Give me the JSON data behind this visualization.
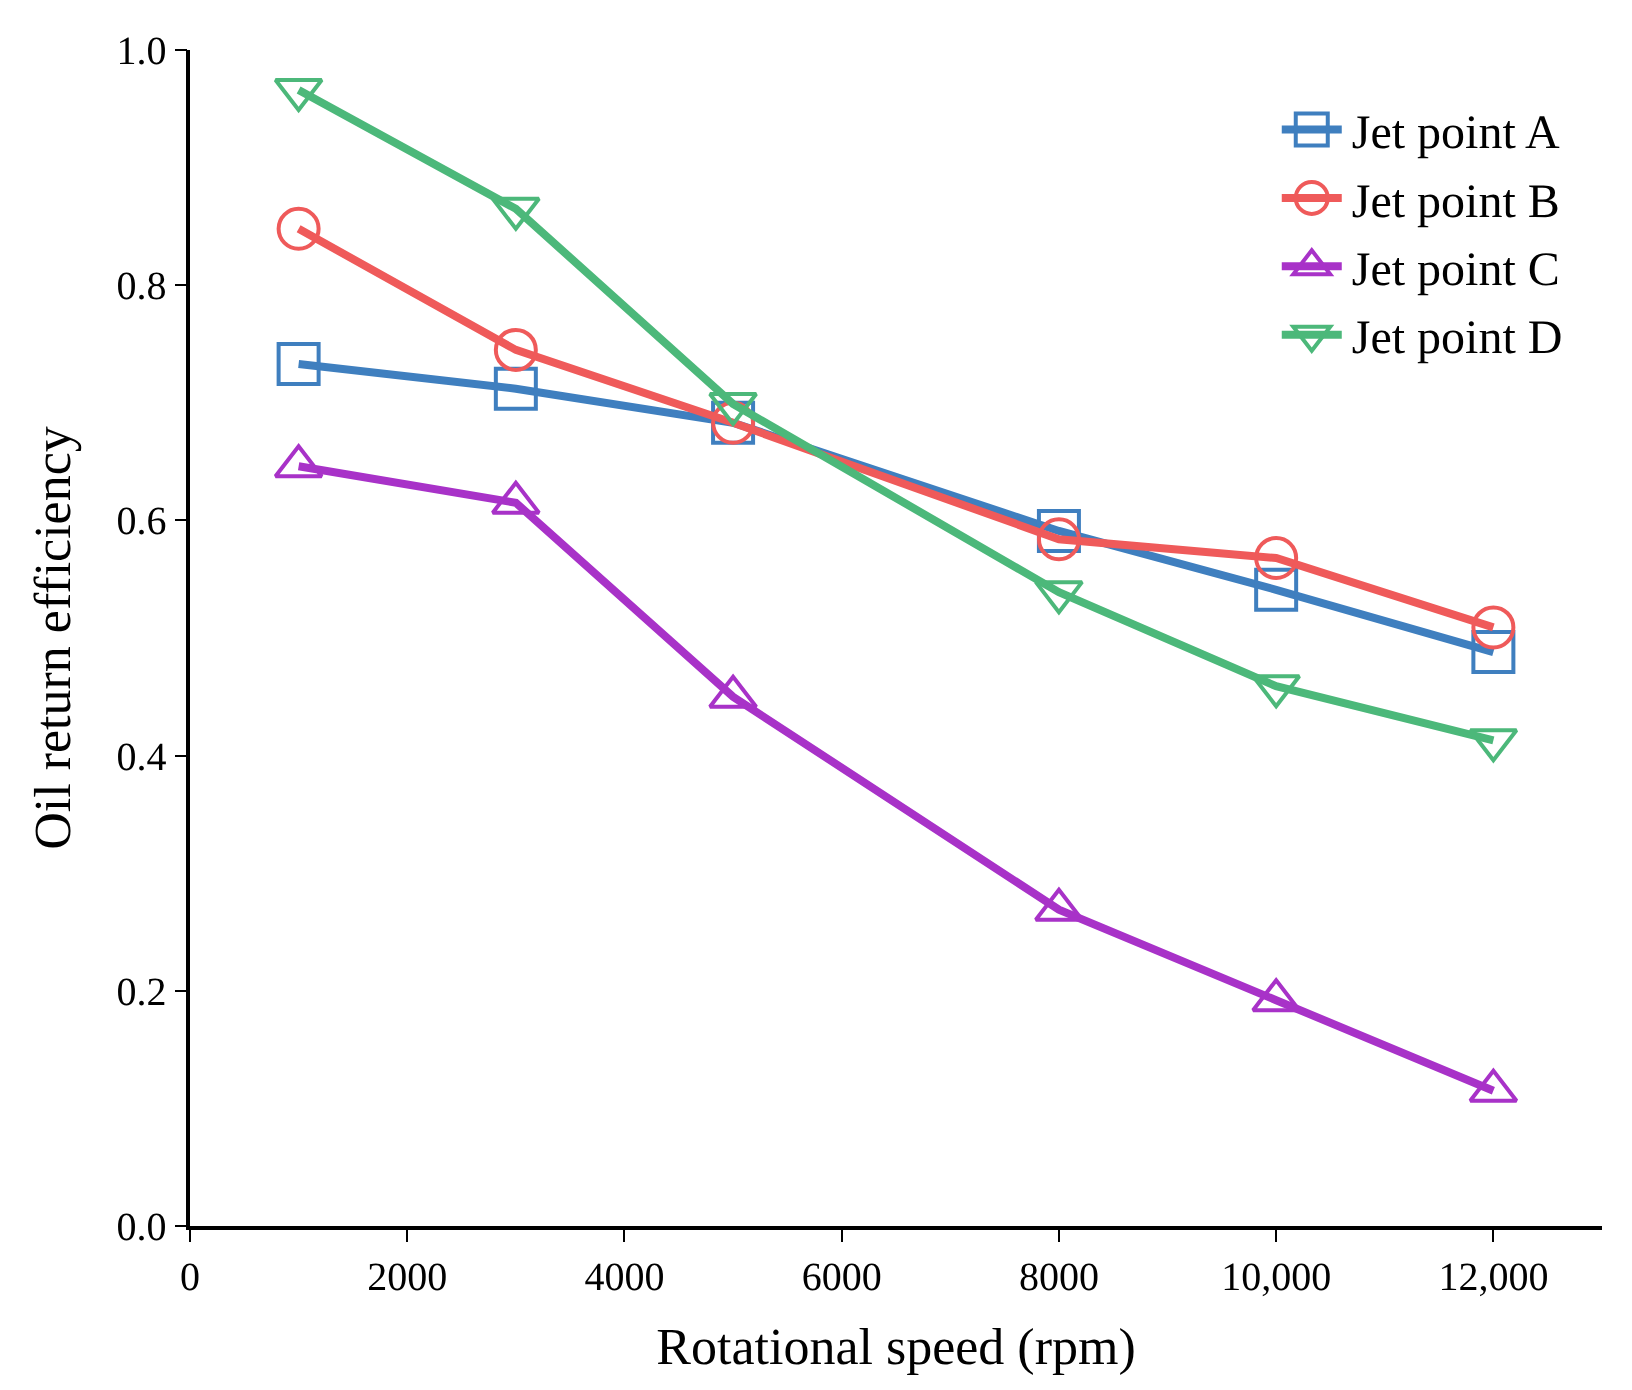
{
  "chart_data": {
    "type": "line",
    "xlabel": "Rotational speed (rpm)",
    "ylabel": "Oil return efficiency",
    "x": [
      1000,
      3000,
      5000,
      8000,
      10000,
      12000
    ],
    "series": [
      {
        "name": "Jet point A",
        "color": "#3f7fbf",
        "marker": "square",
        "values": [
          0.733,
          0.712,
          0.683,
          0.591,
          0.541,
          0.488
        ]
      },
      {
        "name": "Jet point B",
        "color": "#ef5a5a",
        "marker": "circle",
        "values": [
          0.848,
          0.745,
          0.683,
          0.584,
          0.568,
          0.509
        ]
      },
      {
        "name": "Jet point C",
        "color": "#a832c8",
        "marker": "triangle",
        "values": [
          0.646,
          0.615,
          0.45,
          0.269,
          0.192,
          0.115
        ]
      },
      {
        "name": "Jet point D",
        "color": "#4cb87a",
        "marker": "triangle-down",
        "values": [
          0.966,
          0.865,
          0.699,
          0.539,
          0.459,
          0.413
        ]
      }
    ],
    "xlim": [
      0,
      13000
    ],
    "xticks": [
      0,
      2000,
      4000,
      6000,
      8000,
      {
        "value": 10000,
        "label": "10,000"
      },
      {
        "value": 12000,
        "label": "12,000"
      }
    ],
    "ylim": [
      0,
      1.0
    ],
    "yticks": [
      {
        "value": 0,
        "label": "0.0"
      },
      0.2,
      0.4,
      0.6,
      0.8,
      {
        "value": 1.0,
        "label": "1.0"
      }
    ],
    "legend": "top right",
    "line_style": "solid"
  }
}
